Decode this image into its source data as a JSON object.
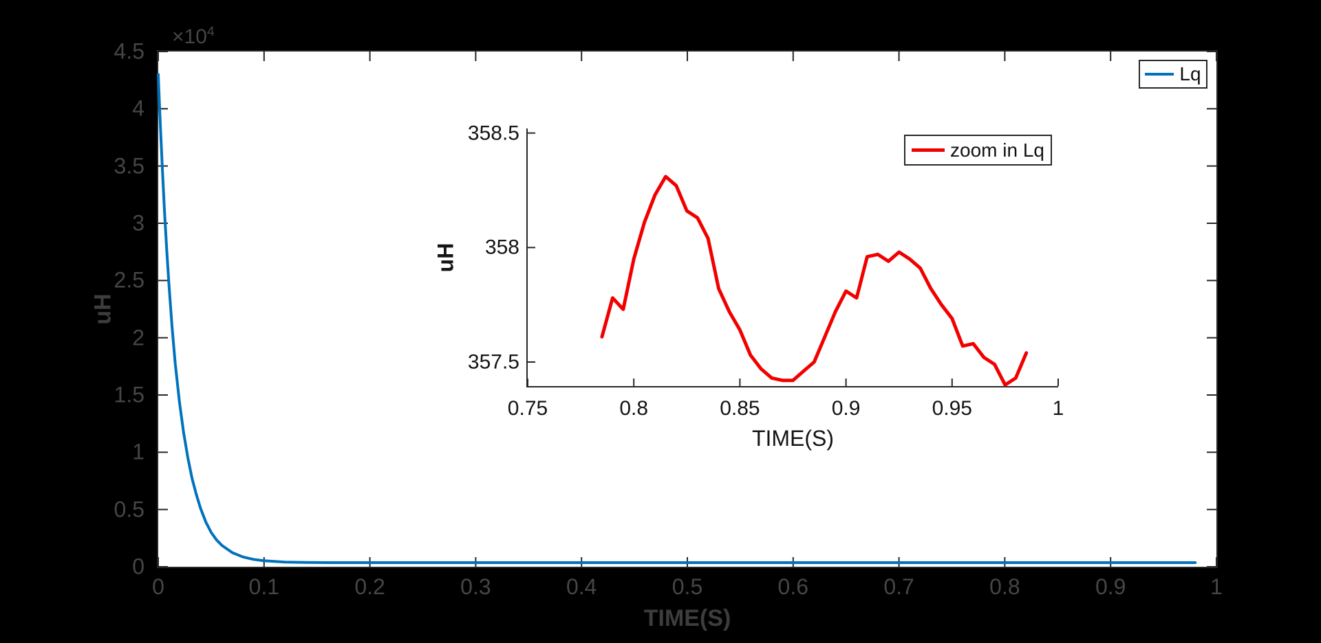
{
  "figure": {
    "background": "#000000",
    "axes_background": "#ffffff",
    "spine_color": "#262626",
    "main_tick_color": "#464646",
    "main_label_color": "#3d3d3d",
    "inset_text_color": "#141414"
  },
  "chart_data": [
    {
      "name": "main",
      "type": "line",
      "title": "",
      "xlabel": "TIME(S)",
      "ylabel": "uH",
      "y_exponent": {
        "base": "×10",
        "power": "4"
      },
      "xlim": [
        0,
        1
      ],
      "ylim": [
        0,
        45000
      ],
      "grid": false,
      "legend": {
        "position": "top-right",
        "entries": [
          {
            "label": "Lq",
            "color": "#0072bd"
          }
        ]
      },
      "xticks": {
        "values": [
          0,
          0.1,
          0.2,
          0.3,
          0.4,
          0.5,
          0.6,
          0.7,
          0.8,
          0.9,
          1
        ],
        "labels": [
          "0",
          "0.1",
          "0.2",
          "0.3",
          "0.4",
          "0.5",
          "0.6",
          "0.7",
          "0.8",
          "0.9",
          "1"
        ]
      },
      "yticks": {
        "values": [
          0,
          5000,
          10000,
          15000,
          20000,
          25000,
          30000,
          35000,
          40000,
          45000
        ],
        "labels": [
          "0",
          "0.5",
          "1",
          "1.5",
          "2",
          "2.5",
          "3",
          "3.5",
          "4",
          "4.5"
        ]
      },
      "series": [
        {
          "name": "Lq",
          "color": "#0072bd",
          "line_width": 4,
          "points": [
            [
              0,
              43000
            ],
            [
              0.002,
              38500
            ],
            [
              0.004,
              34500
            ],
            [
              0.006,
              30900
            ],
            [
              0.008,
              27700
            ],
            [
              0.01,
              24800
            ],
            [
              0.013,
              21000
            ],
            [
              0.016,
              17800
            ],
            [
              0.02,
              14400
            ],
            [
              0.024,
              11700
            ],
            [
              0.028,
              9500
            ],
            [
              0.032,
              7700
            ],
            [
              0.036,
              6300
            ],
            [
              0.04,
              5100
            ],
            [
              0.045,
              3900
            ],
            [
              0.05,
              3000
            ],
            [
              0.055,
              2350
            ],
            [
              0.06,
              1880
            ],
            [
              0.07,
              1230
            ],
            [
              0.08,
              860
            ],
            [
              0.09,
              640
            ],
            [
              0.1,
              520
            ],
            [
              0.12,
              410
            ],
            [
              0.14,
              375
            ],
            [
              0.16,
              363
            ],
            [
              0.2,
              358
            ],
            [
              0.25,
              357.7
            ],
            [
              0.3,
              357.6
            ],
            [
              0.4,
              357.5
            ],
            [
              0.5,
              357.5
            ],
            [
              0.6,
              357.5
            ],
            [
              0.7,
              357.6
            ],
            [
              0.8,
              357.7
            ],
            [
              0.9,
              357.5
            ],
            [
              0.98,
              357.5
            ]
          ]
        }
      ]
    },
    {
      "name": "inset",
      "type": "line",
      "title": "",
      "xlabel": "TIME(S)",
      "ylabel": "uH",
      "xlim": [
        0.75,
        1.0
      ],
      "ylim": [
        357.395,
        358.52
      ],
      "grid": false,
      "legend": {
        "position": "top-right",
        "entries": [
          {
            "label": "zoom in Lq",
            "color": "#f20000"
          }
        ]
      },
      "xticks": {
        "values": [
          0.75,
          0.8,
          0.85,
          0.9,
          0.95,
          1
        ],
        "labels": [
          "0.75",
          "0.8",
          "0.85",
          "0.9",
          "0.95",
          "1"
        ]
      },
      "yticks": {
        "values": [
          357.5,
          358,
          358.5
        ],
        "labels": [
          "357.5",
          "358",
          "358.5"
        ]
      },
      "series": [
        {
          "name": "zoom in Lq",
          "color": "#f20000",
          "line_width": 5,
          "points": [
            [
              0.785,
              357.61
            ],
            [
              0.79,
              357.78
            ],
            [
              0.795,
              357.73
            ],
            [
              0.8,
              357.95
            ],
            [
              0.805,
              358.11
            ],
            [
              0.81,
              358.23
            ],
            [
              0.815,
              358.31
            ],
            [
              0.82,
              358.27
            ],
            [
              0.825,
              358.16
            ],
            [
              0.83,
              358.13
            ],
            [
              0.835,
              358.04
            ],
            [
              0.84,
              357.82
            ],
            [
              0.845,
              357.72
            ],
            [
              0.85,
              357.64
            ],
            [
              0.855,
              357.53
            ],
            [
              0.86,
              357.47
            ],
            [
              0.865,
              357.43
            ],
            [
              0.87,
              357.42
            ],
            [
              0.875,
              357.42
            ],
            [
              0.88,
              357.46
            ],
            [
              0.885,
              357.5
            ],
            [
              0.89,
              357.61
            ],
            [
              0.895,
              357.72
            ],
            [
              0.9,
              357.81
            ],
            [
              0.905,
              357.78
            ],
            [
              0.91,
              357.96
            ],
            [
              0.915,
              357.97
            ],
            [
              0.92,
              357.94
            ],
            [
              0.925,
              357.98
            ],
            [
              0.93,
              357.95
            ],
            [
              0.935,
              357.91
            ],
            [
              0.94,
              357.82
            ],
            [
              0.945,
              357.75
            ],
            [
              0.95,
              357.69
            ],
            [
              0.955,
              357.57
            ],
            [
              0.96,
              357.58
            ],
            [
              0.965,
              357.52
            ],
            [
              0.97,
              357.49
            ],
            [
              0.975,
              357.4
            ],
            [
              0.98,
              357.43
            ],
            [
              0.985,
              357.54
            ]
          ]
        }
      ]
    }
  ]
}
